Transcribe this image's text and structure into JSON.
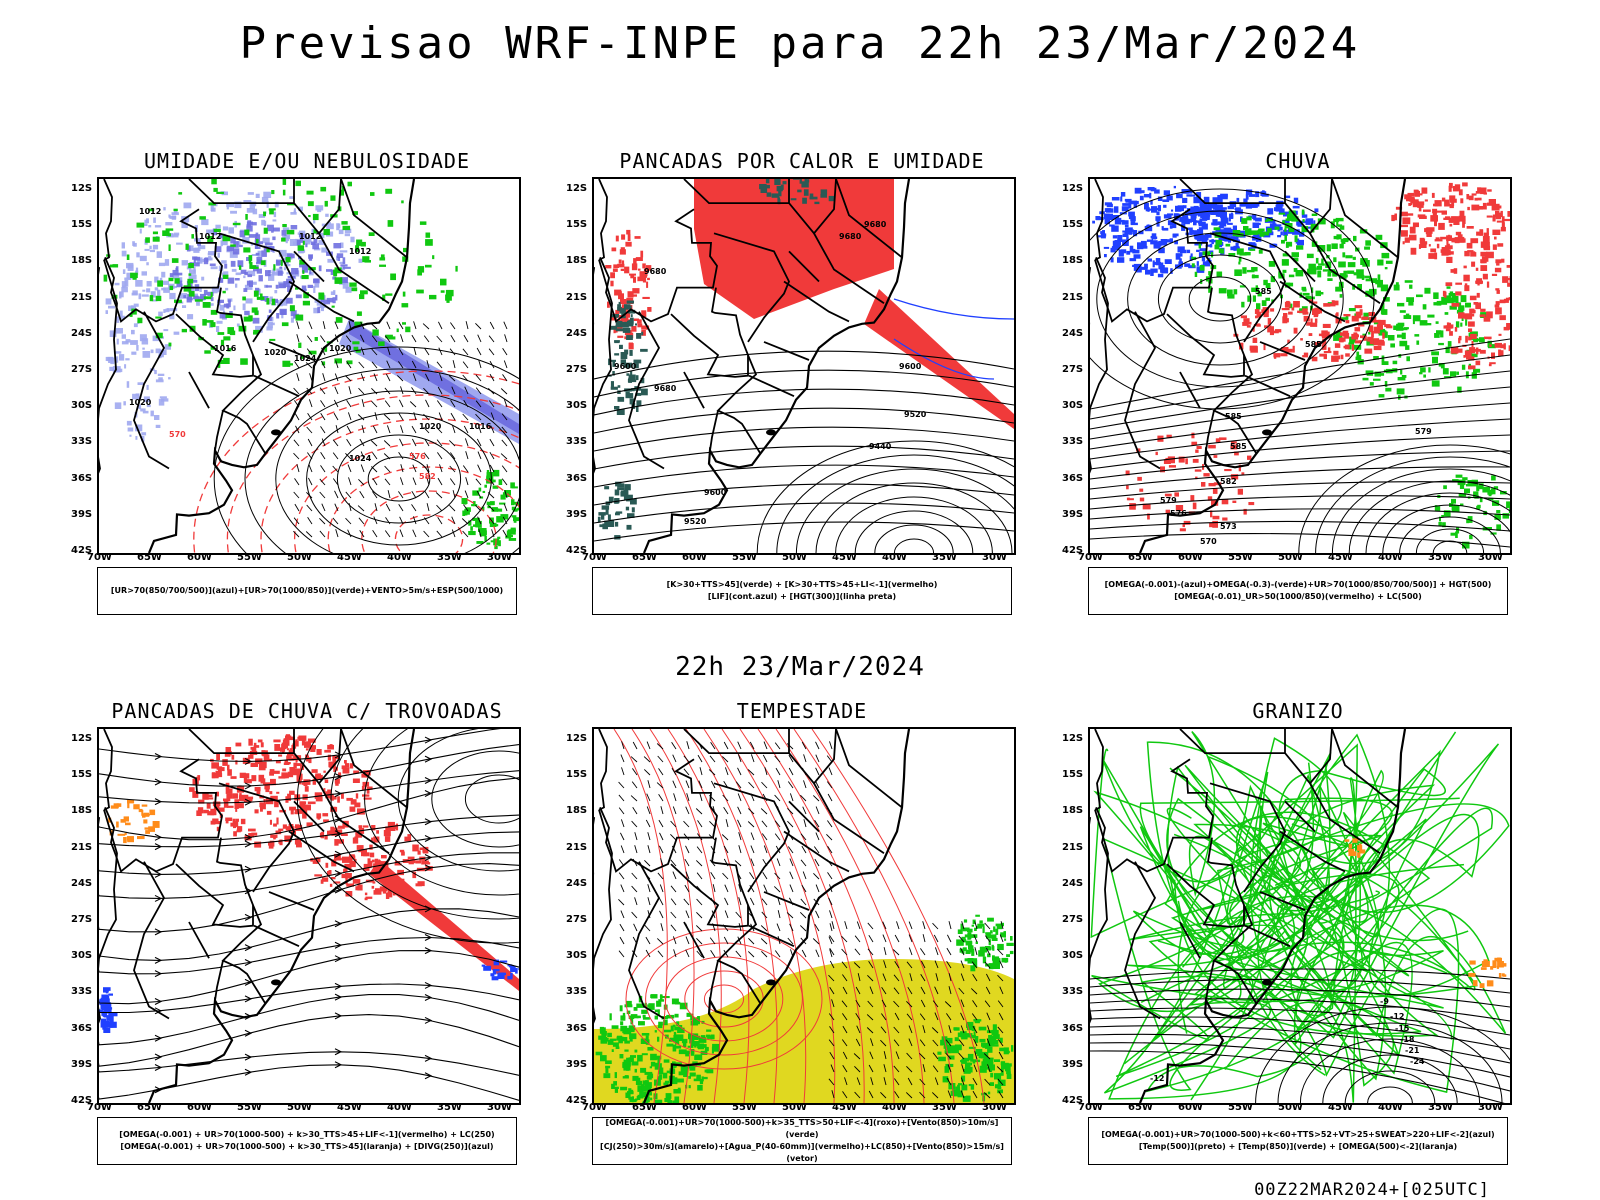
{
  "header": {
    "title": "Previsao WRF-INPE  para 22h 23/Mar/2024"
  },
  "middle": {
    "title": "22h 23/Mar/2024"
  },
  "footer": {
    "stamp": "00Z22MAR2024+[025UTC]"
  },
  "axes": {
    "lat_labels": [
      "12S",
      "15S",
      "18S",
      "21S",
      "24S",
      "27S",
      "30S",
      "33S",
      "36S",
      "39S",
      "42S"
    ],
    "lon_labels": [
      "70W",
      "65W",
      "60W",
      "55W",
      "50W",
      "45W",
      "40W",
      "35W",
      "30W"
    ]
  },
  "colors": {
    "red": "#f03a3a",
    "green": "#10c810",
    "blue": "#2040ff",
    "lightblue": "#a0a8f0",
    "purple": "#7070e0",
    "yellow": "#e0d820",
    "orange": "#ff8c1a",
    "darkteal": "#2a5a55"
  },
  "panels": [
    {
      "id": "umidade",
      "title": "UMIDADE E/OU NEBULOSIDADE",
      "legend": [
        "[UR>70(850/700/500)](azul)+[UR>70(1000/850)](verde)+VENTO>5m/s+ESP(500/1000)"
      ],
      "contour_labels": [
        "1012",
        "1012",
        "1012",
        "1012",
        "1016",
        "1020",
        "1020",
        "1024",
        "1024",
        "1020",
        "1016",
        "1020",
        "570",
        "576",
        "582"
      ]
    },
    {
      "id": "pancadas-calor",
      "title": "PANCADAS POR CALOR E UMIDADE",
      "legend": [
        "[K>30+TTS>45](verde)  +  [K>30+TTS>45+LI<-1](vermelho)",
        "[LIF](cont.azul)  +  [HGT(300)](linha preta)"
      ],
      "contour_labels": [
        "9680",
        "9680",
        "9680",
        "9600",
        "9680",
        "9600",
        "9520",
        "9440",
        "9600",
        "9520"
      ]
    },
    {
      "id": "chuva",
      "title": "CHUVA",
      "legend": [
        "[OMEGA(-0.001)-(azul)+OMEGA(-0.3)-(verde)+UR>70(1000/850/700/500)]  +  HGT(500)",
        "[OMEGA(-0.01)_UR>50(1000/850)(vermelho)  +  LC(500)"
      ],
      "contour_labels": [
        "585",
        "585",
        "585",
        "579",
        "585",
        "582",
        "579",
        "576",
        "573",
        "570"
      ]
    },
    {
      "id": "pancadas-trovoadas",
      "title": "PANCADAS DE CHUVA C/ TROVOADAS",
      "legend": [
        "[OMEGA(-0.001)  +  UR>70(1000-500)  +  k>30_TTS>45+LIF<-1](vermelho)  +  LC(250)",
        "[OMEGA(-0.001)  +  UR>70(1000-500)  +  k>30_TTS>45](laranja)  +  [DIVG(250)](azul)"
      ],
      "contour_labels": []
    },
    {
      "id": "tempestade",
      "title": "TEMPESTADE",
      "legend": [
        "[OMEGA(-0.001)+UR>70(1000-500)+k>35_TTS>50+LIF<-4](roxo)+[Vento(850)>10m/s](verde)",
        "[CJ(250)>30m/s](amarelo)+[Agua_P(40-60mm)](vermelho)+LC(850)+[Vento(850)>15m/s](vetor)"
      ],
      "contour_labels": []
    },
    {
      "id": "granizo",
      "title": "GRANIZO",
      "legend": [
        "[OMEGA(-0.001)+UR>70(1000-500)+k<60+TTS>52+VT>25+SWEAT>220+LIF<-2](azul)",
        "[Temp(500)](preto)  +  [Temp(850)](verde)  +  [OMEGA(500)<-2](laranja)"
      ],
      "contour_labels": [
        "-9",
        "-12",
        "-15",
        "-18",
        "-21",
        "-24",
        "-12"
      ]
    }
  ]
}
